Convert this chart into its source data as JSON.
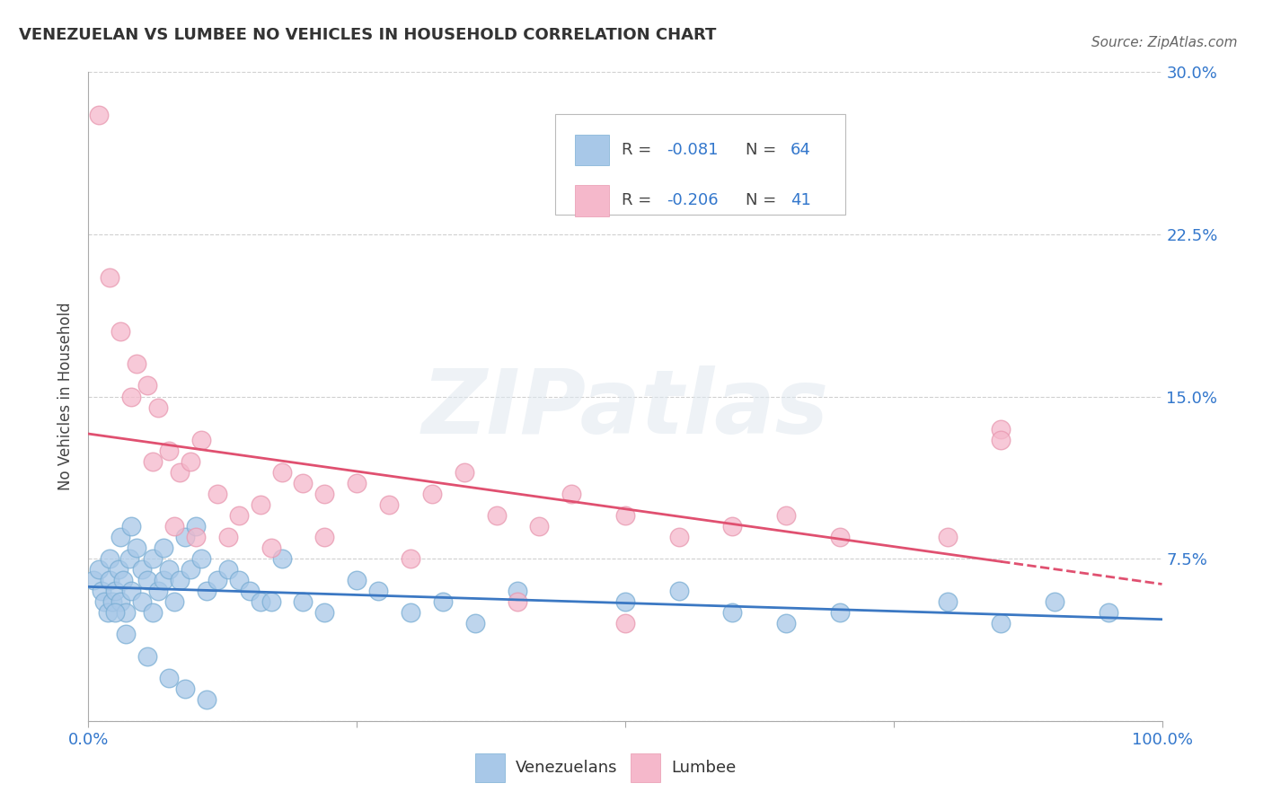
{
  "title": "VENEZUELAN VS LUMBEE NO VEHICLES IN HOUSEHOLD CORRELATION CHART",
  "source": "Source: ZipAtlas.com",
  "ylabel": "No Vehicles in Household",
  "xlim": [
    0.0,
    100.0
  ],
  "ylim": [
    0.0,
    30.0
  ],
  "venezuelan_color": "#A8C8E8",
  "venezuelan_edge_color": "#7aaed4",
  "lumbee_color": "#F5B8CB",
  "lumbee_edge_color": "#e898b0",
  "venezuelan_line_color": "#3B78C3",
  "lumbee_line_color": "#E05070",
  "legend_color": "#3377CC",
  "watermark": "ZIPatlas",
  "venezuelan_x": [
    0.5,
    1.0,
    1.2,
    1.5,
    1.8,
    2.0,
    2.0,
    2.2,
    2.5,
    2.8,
    3.0,
    3.0,
    3.2,
    3.5,
    3.8,
    4.0,
    4.0,
    4.5,
    5.0,
    5.0,
    5.5,
    6.0,
    6.0,
    6.5,
    7.0,
    7.0,
    7.5,
    8.0,
    8.5,
    9.0,
    9.5,
    10.0,
    10.5,
    11.0,
    12.0,
    13.0,
    14.0,
    15.0,
    16.0,
    17.0,
    18.0,
    20.0,
    22.0,
    25.0,
    27.0,
    30.0,
    33.0,
    36.0,
    40.0,
    50.0,
    55.0,
    60.0,
    65.0,
    70.0,
    80.0,
    85.0,
    90.0,
    95.0,
    2.5,
    3.5,
    5.5,
    7.5,
    9.0,
    11.0
  ],
  "venezuelan_y": [
    6.5,
    7.0,
    6.0,
    5.5,
    5.0,
    6.5,
    7.5,
    5.5,
    6.0,
    7.0,
    5.5,
    8.5,
    6.5,
    5.0,
    7.5,
    6.0,
    9.0,
    8.0,
    7.0,
    5.5,
    6.5,
    7.5,
    5.0,
    6.0,
    8.0,
    6.5,
    7.0,
    5.5,
    6.5,
    8.5,
    7.0,
    9.0,
    7.5,
    6.0,
    6.5,
    7.0,
    6.5,
    6.0,
    5.5,
    5.5,
    7.5,
    5.5,
    5.0,
    6.5,
    6.0,
    5.0,
    5.5,
    4.5,
    6.0,
    5.5,
    6.0,
    5.0,
    4.5,
    5.0,
    5.5,
    4.5,
    5.5,
    5.0,
    5.0,
    4.0,
    3.0,
    2.0,
    1.5,
    1.0
  ],
  "lumbee_x": [
    1.0,
    2.0,
    3.0,
    4.5,
    5.5,
    6.5,
    7.5,
    8.5,
    9.5,
    10.5,
    12.0,
    14.0,
    16.0,
    18.0,
    20.0,
    22.0,
    25.0,
    28.0,
    32.0,
    35.0,
    38.0,
    42.0,
    45.0,
    50.0,
    55.0,
    60.0,
    65.0,
    70.0,
    80.0,
    85.0,
    4.0,
    6.0,
    8.0,
    10.0,
    13.0,
    17.0,
    22.0,
    30.0,
    40.0,
    50.0,
    85.0
  ],
  "lumbee_y": [
    28.0,
    20.5,
    18.0,
    16.5,
    15.5,
    14.5,
    12.5,
    11.5,
    12.0,
    13.0,
    10.5,
    9.5,
    10.0,
    11.5,
    11.0,
    10.5,
    11.0,
    10.0,
    10.5,
    11.5,
    9.5,
    9.0,
    10.5,
    9.5,
    8.5,
    9.0,
    9.5,
    8.5,
    8.5,
    13.5,
    15.0,
    12.0,
    9.0,
    8.5,
    8.5,
    8.0,
    8.5,
    7.5,
    5.5,
    4.5,
    13.0
  ],
  "lumbee_solid_end": 85.0,
  "grid_color": "#d0d0d0",
  "spine_color": "#aaaaaa",
  "title_fontsize": 13,
  "tick_fontsize": 13,
  "ylabel_fontsize": 12
}
